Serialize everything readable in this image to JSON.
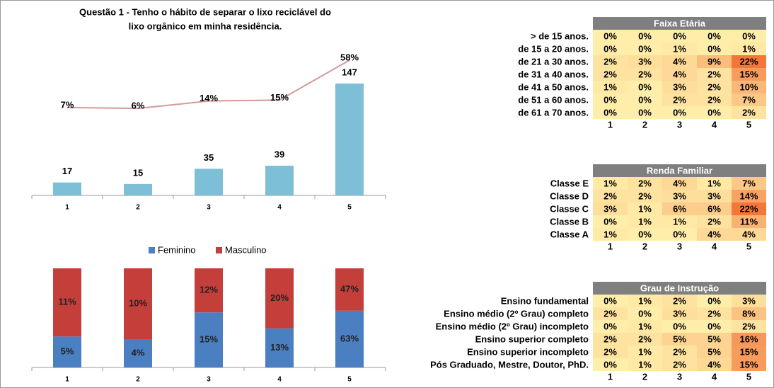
{
  "chart_data": [
    {
      "type": "bar_line",
      "title": [
        "Questão 1 - Tenho o hábito de separar o lixo reciclável do",
        "lixo orgânico em minha residência."
      ],
      "categories": [
        "1",
        "2",
        "3",
        "4",
        "5"
      ],
      "series": [
        {
          "type": "bar",
          "color": "#7cbfd6",
          "values": [
            17,
            15,
            35,
            39,
            147
          ]
        },
        {
          "type": "line",
          "color": "#d49a9a",
          "values": [
            7,
            6,
            14,
            15,
            58
          ],
          "value_labels": [
            "7%",
            "6%",
            "14%",
            "15%",
            "58%"
          ]
        }
      ]
    },
    {
      "type": "stacked_bar_100",
      "categories": [
        "1",
        "2",
        "3",
        "4",
        "5"
      ],
      "legend": "top",
      "series": [
        {
          "name": "Feminino",
          "color": "#4a7fc2",
          "values": [
            5,
            4,
            15,
            13,
            63
          ],
          "value_labels": [
            "5%",
            "4%",
            "15%",
            "13%",
            "63%"
          ]
        },
        {
          "name": "Masculino",
          "color": "#c43e3a",
          "values": [
            11,
            10,
            12,
            20,
            47
          ],
          "value_labels": [
            "11%",
            "10%",
            "12%",
            "20%",
            "47%"
          ]
        }
      ]
    }
  ],
  "tables": [
    {
      "title": "Faixa Etária",
      "columns": [
        "1",
        "2",
        "3",
        "4",
        "5"
      ],
      "rows": [
        {
          "label": "> de 15 anos.",
          "cells": [
            "0%",
            "0%",
            "0%",
            "0%",
            "0%"
          ]
        },
        {
          "label": "de 15 a 20 anos.",
          "cells": [
            "0%",
            "0%",
            "1%",
            "0%",
            "1%"
          ]
        },
        {
          "label": "de 21 a 30 anos.",
          "cells": [
            "2%",
            "3%",
            "4%",
            "9%",
            "22%"
          ]
        },
        {
          "label": "de 31 a 40 anos.",
          "cells": [
            "2%",
            "2%",
            "4%",
            "2%",
            "15%"
          ]
        },
        {
          "label": "de 41 a 50 anos.",
          "cells": [
            "1%",
            "0%",
            "3%",
            "2%",
            "10%"
          ]
        },
        {
          "label": "de 51 a 60 anos.",
          "cells": [
            "0%",
            "0%",
            "2%",
            "2%",
            "7%"
          ]
        },
        {
          "label": "de 61 a 70 anos.",
          "cells": [
            "0%",
            "0%",
            "0%",
            "0%",
            "2%"
          ]
        }
      ]
    },
    {
      "title": "Renda Familiar",
      "columns": [
        "1",
        "2",
        "3",
        "4",
        "5"
      ],
      "rows": [
        {
          "label": "Classe E",
          "cells": [
            "1%",
            "2%",
            "4%",
            "1%",
            "7%"
          ]
        },
        {
          "label": "Classe D",
          "cells": [
            "2%",
            "2%",
            "3%",
            "3%",
            "14%"
          ]
        },
        {
          "label": "Classe C",
          "cells": [
            "3%",
            "1%",
            "6%",
            "6%",
            "22%"
          ]
        },
        {
          "label": "Classe B",
          "cells": [
            "0%",
            "1%",
            "1%",
            "2%",
            "11%"
          ]
        },
        {
          "label": "Classe A",
          "cells": [
            "1%",
            "0%",
            "0%",
            "4%",
            "4%"
          ]
        }
      ]
    },
    {
      "title": "Grau de Instrução",
      "columns": [
        "1",
        "2",
        "3",
        "4",
        "5"
      ],
      "rows": [
        {
          "label": "Ensino fundamental",
          "cells": [
            "0%",
            "1%",
            "2%",
            "0%",
            "3%"
          ]
        },
        {
          "label": "Ensino médio (2º Grau) completo",
          "cells": [
            "2%",
            "0%",
            "3%",
            "2%",
            "8%"
          ]
        },
        {
          "label": "Ensino médio (2º Grau) incompleto",
          "cells": [
            "0%",
            "1%",
            "0%",
            "0%",
            "2%"
          ]
        },
        {
          "label": "Ensino superior completo",
          "cells": [
            "2%",
            "2%",
            "5%",
            "5%",
            "16%"
          ]
        },
        {
          "label": "Ensino superior incompleto",
          "cells": [
            "2%",
            "1%",
            "2%",
            "5%",
            "15%"
          ]
        },
        {
          "label": "Pós Graduado, Mestre, Doutor, PhD.",
          "cells": [
            "0%",
            "1%",
            "2%",
            "4%",
            "15%"
          ]
        }
      ]
    }
  ]
}
